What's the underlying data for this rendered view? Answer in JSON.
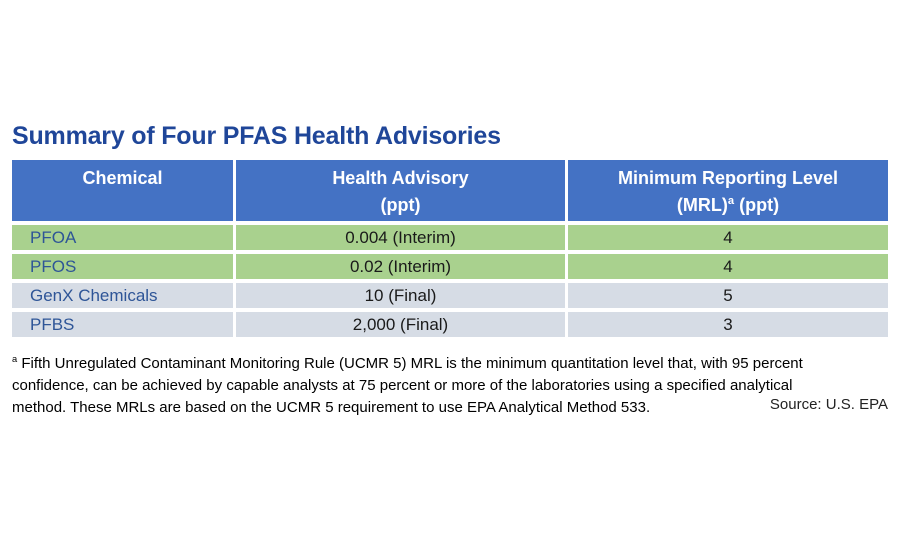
{
  "colors": {
    "title_text": "#1F4699",
    "header_bg": "#4472C4",
    "header_text": "#FFFFFF",
    "row_green_bg": "#A9D18E",
    "row_gray_bg": "#D6DCE5",
    "chemical_text": "#2E5597",
    "value_text": "#1A1A1A",
    "footnote_text": "#000000"
  },
  "page": {
    "title": "Summary of Four PFAS Health Advisories"
  },
  "table": {
    "header": {
      "col1_line1": "Chemical",
      "col2_line1": "Health Advisory",
      "col2_line2": "(ppt)",
      "col3_line1": "Minimum Reporting Level",
      "col3_line2_pre": "(MRL)",
      "col3_line2_sup": "a",
      "col3_line2_post": " (ppt)"
    },
    "rows": [
      {
        "chemical": "PFOA",
        "health_advisory": "0.004 (Interim)",
        "mrl": "4",
        "highlight": "green"
      },
      {
        "chemical": "PFOS",
        "health_advisory": "0.02 (Interim)",
        "mrl": "4",
        "highlight": "green"
      },
      {
        "chemical": "GenX Chemicals",
        "health_advisory": "10 (Final)",
        "mrl": "5",
        "highlight": "gray"
      },
      {
        "chemical": "PFBS",
        "health_advisory": "2,000 (Final)",
        "mrl": "3",
        "highlight": "gray"
      }
    ]
  },
  "footnote": {
    "marker": "a",
    "text": " Fifth Unregulated Contaminant Monitoring Rule (UCMR 5) MRL is the minimum quantitation level that, with 95 percent confidence, can be achieved by capable analysts at 75 percent or more of the laboratories using a specified analytical method. These MRLs are based on the UCMR 5 requirement to use EPA Analytical Method 533.",
    "source": "Source: U.S. EPA"
  },
  "chart_data": {
    "type": "table",
    "title": "Summary of Four PFAS Health Advisories",
    "columns": [
      "Chemical",
      "Health Advisory (ppt)",
      "Minimum Reporting Level (MRL)a (ppt)"
    ],
    "rows": [
      [
        "PFOA",
        "0.004 (Interim)",
        "4"
      ],
      [
        "PFOS",
        "0.02 (Interim)",
        "4"
      ],
      [
        "GenX Chemicals",
        "10 (Final)",
        "5"
      ],
      [
        "PFBS",
        "2,000 (Final)",
        "3"
      ]
    ],
    "row_highlight": [
      "green",
      "green",
      "gray",
      "gray"
    ],
    "footnote": "a Fifth Unregulated Contaminant Monitoring Rule (UCMR 5) MRL is the minimum quantitation level that, with 95 percent confidence, can be achieved by capable analysts at 75 percent or more of the laboratories using a specified analytical method. These MRLs are based on the UCMR 5 requirement to use EPA Analytical Method 533.",
    "source": "Source: U.S. EPA"
  }
}
